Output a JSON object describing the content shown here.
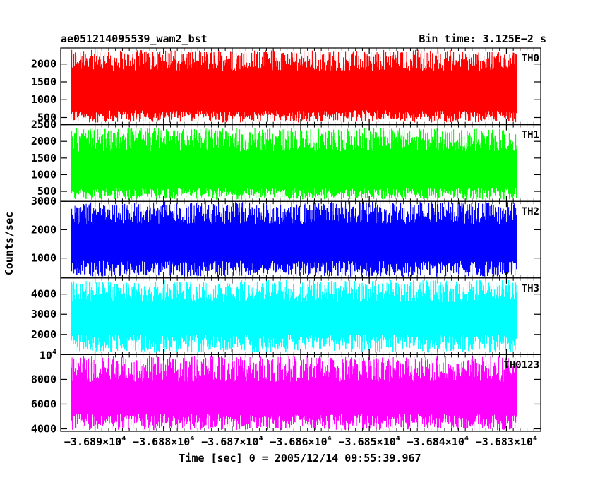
{
  "header": {
    "title_left": "ae051214095539_wam2_bst",
    "title_right": "Bin time: 3.125E−2 s"
  },
  "axes": {
    "ylabel": "Counts/sec",
    "xlabel": "Time [sec] 0 = 2005/12/14 09:55:39.967"
  },
  "chart_data": {
    "type": "line",
    "x_range": [
      -36895,
      -36825
    ],
    "data_x_range": [
      -36893.5,
      -36828.5
    ],
    "x_ticks": [
      {
        "mantissa": "−3.689",
        "exp": "4",
        "value": -36890
      },
      {
        "mantissa": "−3.688",
        "exp": "4",
        "value": -36880
      },
      {
        "mantissa": "−3.687",
        "exp": "4",
        "value": -36870
      },
      {
        "mantissa": "−3.686",
        "exp": "4",
        "value": -36860
      },
      {
        "mantissa": "−3.685",
        "exp": "4",
        "value": -36850
      },
      {
        "mantissa": "−3.684",
        "exp": "4",
        "value": -36840
      },
      {
        "mantissa": "−3.683",
        "exp": "4",
        "value": -36830
      }
    ],
    "panels": [
      {
        "name": "TH0",
        "color": "#ff0000",
        "ylim": [
          300,
          2450
        ],
        "yticks": [
          {
            "label": "500",
            "value": 500
          },
          {
            "label": "1000",
            "value": 1000
          },
          {
            "label": "1500",
            "value": 1500
          },
          {
            "label": "2000",
            "value": 2000
          }
        ],
        "band": {
          "low": [
            360,
            700
          ],
          "high": [
            1800,
            2400
          ]
        }
      },
      {
        "name": "TH1",
        "color": "#00ff00",
        "ylim": [
          200,
          2500
        ],
        "yticks": [
          {
            "label": "500",
            "value": 500
          },
          {
            "label": "1000",
            "value": 1000
          },
          {
            "label": "1500",
            "value": 1500
          },
          {
            "label": "2000",
            "value": 2000
          },
          {
            "label": "2500",
            "value": 2500
          }
        ],
        "band": {
          "low": [
            250,
            600
          ],
          "high": [
            1700,
            2400
          ]
        }
      },
      {
        "name": "TH2",
        "color": "#0000ff",
        "ylim": [
          300,
          3000
        ],
        "yticks": [
          {
            "label": "1000",
            "value": 1000
          },
          {
            "label": "2000",
            "value": 2000
          },
          {
            "label": "3000",
            "value": 3000
          }
        ],
        "band": {
          "low": [
            350,
            900
          ],
          "high": [
            2200,
            3000
          ]
        }
      },
      {
        "name": "TH3",
        "color": "#00ffff",
        "ylim": [
          1000,
          4800
        ],
        "yticks": [
          {
            "label": "2000",
            "value": 2000
          },
          {
            "label": "3000",
            "value": 3000
          },
          {
            "label": "4000",
            "value": 4000
          }
        ],
        "band": {
          "low": [
            1100,
            2000
          ],
          "high": [
            3600,
            4700
          ]
        }
      },
      {
        "name": "TH0123",
        "color": "#ff00ff",
        "ylim": [
          3800,
          10000
        ],
        "yticks": [
          {
            "label": "4000",
            "value": 4000
          },
          {
            "label": "6000",
            "value": 6000
          },
          {
            "label": "8000",
            "value": 8000
          },
          {
            "label": "10",
            "exp": "4",
            "value": 10000
          }
        ],
        "band": {
          "low": [
            3900,
            5200
          ],
          "high": [
            7800,
            9900
          ]
        }
      }
    ]
  }
}
